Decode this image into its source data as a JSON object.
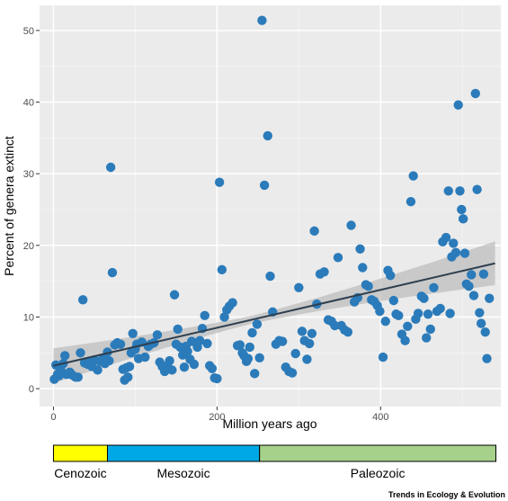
{
  "chart_data": {
    "type": "scatter",
    "xlabel": "Million years ago",
    "ylabel": "Percent of genera extinct",
    "xlim": [
      -17,
      547
    ],
    "ylim": [
      -2.5,
      53.5
    ],
    "xticks": [
      0,
      200,
      400
    ],
    "yticks": [
      0,
      10,
      20,
      30,
      40,
      50
    ],
    "grid": true,
    "point_color": "#2b7bba",
    "trend_color": "#2e3f4f",
    "band_color": "#bdbdbd",
    "panel_color": "#ebebeb",
    "trend_line": {
      "x": [
        0,
        540
      ],
      "y": [
        3.2,
        17.5
      ],
      "band_lower_start": 1.8,
      "band_upper_start": 4.7,
      "band_lower_end": 15.0,
      "band_upper_end": 20.0
    },
    "points": [
      [
        1,
        1.3
      ],
      [
        3,
        3.3
      ],
      [
        5,
        2.0
      ],
      [
        7,
        1.8
      ],
      [
        9,
        2.6
      ],
      [
        12,
        3.5
      ],
      [
        14,
        4.6
      ],
      [
        16,
        2.0
      ],
      [
        20,
        2.3
      ],
      [
        23,
        1.9
      ],
      [
        27,
        1.6
      ],
      [
        30,
        1.6
      ],
      [
        33,
        5.0
      ],
      [
        36,
        12.4
      ],
      [
        38,
        3.6
      ],
      [
        42,
        3.4
      ],
      [
        44,
        3.7
      ],
      [
        47,
        3.1
      ],
      [
        50,
        4.0
      ],
      [
        54,
        2.6
      ],
      [
        57,
        3.8
      ],
      [
        60,
        4.1
      ],
      [
        63,
        3.5
      ],
      [
        66,
        5.1
      ],
      [
        68,
        3.9
      ],
      [
        70,
        30.9
      ],
      [
        72,
        16.2
      ],
      [
        75,
        6.1
      ],
      [
        78,
        6.4
      ],
      [
        82,
        6.2
      ],
      [
        85,
        2.7
      ],
      [
        87,
        1.2
      ],
      [
        89,
        2.9
      ],
      [
        91,
        1.6
      ],
      [
        93,
        3.1
      ],
      [
        95,
        5.0
      ],
      [
        97,
        7.7
      ],
      [
        100,
        5.5
      ],
      [
        102,
        6.2
      ],
      [
        104,
        4.2
      ],
      [
        108,
        6.5
      ],
      [
        112,
        4.4
      ],
      [
        116,
        5.9
      ],
      [
        119,
        6.2
      ],
      [
        123,
        6.4
      ],
      [
        127,
        7.5
      ],
      [
        130,
        3.7
      ],
      [
        133,
        3.1
      ],
      [
        136,
        2.4
      ],
      [
        139,
        3.2
      ],
      [
        142,
        3.9
      ],
      [
        145,
        2.6
      ],
      [
        148,
        13.1
      ],
      [
        150,
        6.2
      ],
      [
        152,
        8.3
      ],
      [
        155,
        5.8
      ],
      [
        158,
        4.7
      ],
      [
        160,
        3.0
      ],
      [
        162,
        5.9
      ],
      [
        164,
        5.2
      ],
      [
        167,
        4.1
      ],
      [
        169,
        6.6
      ],
      [
        172,
        3.4
      ],
      [
        176,
        5.8
      ],
      [
        179,
        6.7
      ],
      [
        182,
        8.4
      ],
      [
        185,
        10.2
      ],
      [
        188,
        6.3
      ],
      [
        191,
        3.2
      ],
      [
        194,
        2.8
      ],
      [
        197,
        1.5
      ],
      [
        200,
        1.4
      ],
      [
        203,
        28.8
      ],
      [
        206,
        16.6
      ],
      [
        209,
        10.0
      ],
      [
        212,
        11.0
      ],
      [
        215,
        11.5
      ],
      [
        219,
        12.0
      ],
      [
        225,
        6.0
      ],
      [
        228,
        6.1
      ],
      [
        231,
        5.0
      ],
      [
        233,
        4.6
      ],
      [
        236,
        3.8
      ],
      [
        238,
        4.2
      ],
      [
        240,
        5.8
      ],
      [
        243,
        7.8
      ],
      [
        246,
        2.1
      ],
      [
        249,
        9.0
      ],
      [
        252,
        4.3
      ],
      [
        255,
        51.4
      ],
      [
        258,
        28.4
      ],
      [
        262,
        35.3
      ],
      [
        265,
        15.7
      ],
      [
        268,
        10.7
      ],
      [
        272,
        6.2
      ],
      [
        276,
        6.7
      ],
      [
        280,
        6.6
      ],
      [
        284,
        3.0
      ],
      [
        288,
        2.4
      ],
      [
        292,
        2.2
      ],
      [
        296,
        4.9
      ],
      [
        300,
        14.1
      ],
      [
        304,
        8.0
      ],
      [
        307,
        6.7
      ],
      [
        310,
        4.1
      ],
      [
        313,
        6.3
      ],
      [
        316,
        7.7
      ],
      [
        319,
        22.0
      ],
      [
        322,
        11.8
      ],
      [
        326,
        16.0
      ],
      [
        331,
        16.3
      ],
      [
        336,
        9.6
      ],
      [
        340,
        9.4
      ],
      [
        344,
        8.8
      ],
      [
        348,
        18.3
      ],
      [
        352,
        8.8
      ],
      [
        356,
        8.2
      ],
      [
        360,
        7.9
      ],
      [
        364,
        22.8
      ],
      [
        368,
        12.1
      ],
      [
        372,
        12.7
      ],
      [
        375,
        19.5
      ],
      [
        378,
        16.9
      ],
      [
        382,
        14.5
      ],
      [
        385,
        14.3
      ],
      [
        389,
        12.4
      ],
      [
        392,
        12.2
      ],
      [
        396,
        11.6
      ],
      [
        399,
        10.8
      ],
      [
        403,
        4.4
      ],
      [
        406,
        9.4
      ],
      [
        409,
        16.5
      ],
      [
        412,
        15.8
      ],
      [
        416,
        12.3
      ],
      [
        419,
        10.4
      ],
      [
        422,
        10.2
      ],
      [
        426,
        7.6
      ],
      [
        430,
        6.7
      ],
      [
        433,
        8.7
      ],
      [
        437,
        26.1
      ],
      [
        440,
        29.7
      ],
      [
        443,
        9.7
      ],
      [
        446,
        10.5
      ],
      [
        450,
        12.9
      ],
      [
        453,
        12.6
      ],
      [
        456,
        7.1
      ],
      [
        458,
        10.4
      ],
      [
        461,
        8.3
      ],
      [
        465,
        14.1
      ],
      [
        469,
        10.8
      ],
      [
        473,
        11.2
      ],
      [
        476,
        20.5
      ],
      [
        480,
        21.1
      ],
      [
        483,
        27.6
      ],
      [
        485,
        10.5
      ],
      [
        487,
        18.4
      ],
      [
        489,
        20.3
      ],
      [
        492,
        19.0
      ],
      [
        495,
        39.6
      ],
      [
        497,
        27.6
      ],
      [
        499,
        25.0
      ],
      [
        501,
        23.7
      ],
      [
        503,
        18.9
      ],
      [
        505,
        14.6
      ],
      [
        508,
        14.3
      ],
      [
        511,
        15.9
      ],
      [
        514,
        13.0
      ],
      [
        516,
        41.2
      ],
      [
        518,
        27.8
      ],
      [
        521,
        10.6
      ],
      [
        523,
        9.1
      ],
      [
        526,
        16.0
      ],
      [
        528,
        7.9
      ],
      [
        530,
        4.2
      ],
      [
        533,
        12.6
      ]
    ],
    "timeline": {
      "segments": [
        {
          "name": "Cenozoic",
          "start": 0,
          "end": 66,
          "color": "#ffff00"
        },
        {
          "name": "Mesozoic",
          "start": 66,
          "end": 252,
          "color": "#00a9e6"
        },
        {
          "name": "Paleozoic",
          "start": 252,
          "end": 541,
          "color": "#a6d18b"
        }
      ]
    },
    "credit": "Trends in Ecology & Evolution"
  }
}
